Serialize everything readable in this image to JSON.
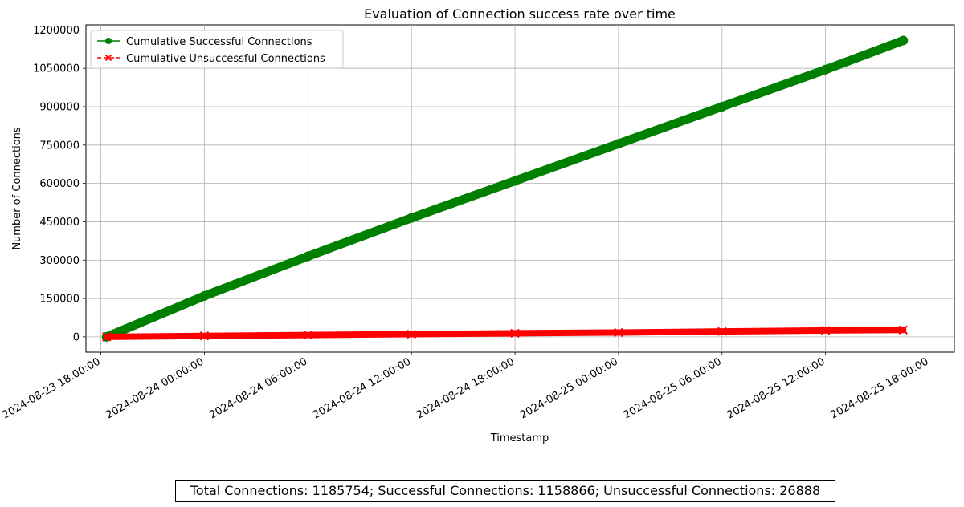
{
  "chart_data": {
    "type": "line",
    "title": "Evaluation of Connection success rate over time",
    "xlabel": "Timestamp",
    "ylabel": "Number of Connections",
    "xlim": [
      "2024-08-23 17:08:00",
      "2024-08-25 19:28:00"
    ],
    "ylim": [
      -60000,
      1220000
    ],
    "x_ticks": [
      "2024-08-23 18:00:00",
      "2024-08-24 00:00:00",
      "2024-08-24 06:00:00",
      "2024-08-24 12:00:00",
      "2024-08-24 18:00:00",
      "2024-08-25 00:00:00",
      "2024-08-25 06:00:00",
      "2024-08-25 12:00:00",
      "2024-08-25 18:00:00"
    ],
    "y_ticks": [
      0,
      150000,
      300000,
      450000,
      600000,
      750000,
      900000,
      1050000,
      1200000
    ],
    "grid": true,
    "legend_position": "upper left",
    "series": [
      {
        "name": "Cumulative Successful Connections",
        "color": "#008000",
        "marker": "circle",
        "linestyle": "solid",
        "x": [
          "2024-08-23 18:20:00",
          "2024-08-24 00:00:00",
          "2024-08-24 06:00:00",
          "2024-08-24 12:00:00",
          "2024-08-24 18:00:00",
          "2024-08-25 00:00:00",
          "2024-08-25 06:00:00",
          "2024-08-25 12:00:00",
          "2024-08-25 16:30:00"
        ],
        "values": [
          0,
          160000,
          315000,
          465000,
          610000,
          755000,
          900000,
          1045000,
          1158866
        ]
      },
      {
        "name": "Cumulative Unsuccessful Connections",
        "color": "#ff0000",
        "marker": "x",
        "linestyle": "dashed",
        "x": [
          "2024-08-23 18:20:00",
          "2024-08-24 00:00:00",
          "2024-08-24 06:00:00",
          "2024-08-24 12:00:00",
          "2024-08-24 18:00:00",
          "2024-08-25 00:00:00",
          "2024-08-25 06:00:00",
          "2024-08-25 12:00:00",
          "2024-08-25 16:30:00"
        ],
        "values": [
          0,
          3500,
          7000,
          10500,
          14000,
          17000,
          21000,
          25000,
          26888
        ]
      }
    ]
  },
  "summary": "Total Connections: 1185754; Successful Connections: 1158866; Unsuccessful Connections: 26888"
}
